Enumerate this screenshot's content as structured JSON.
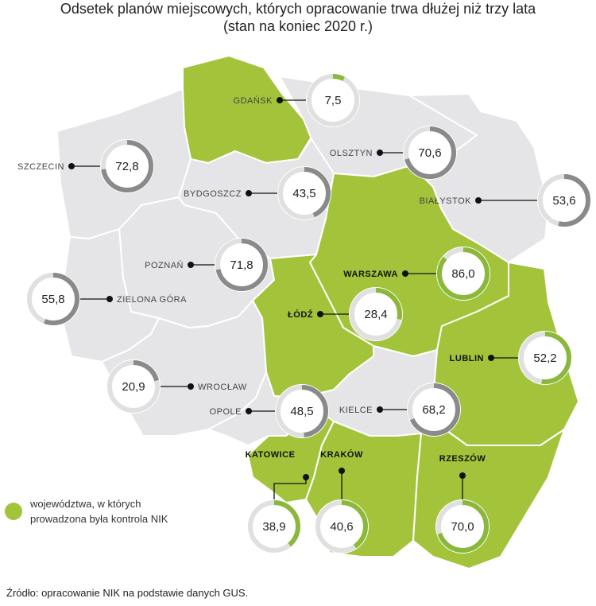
{
  "title": {
    "line1": "Odsetek planów miejscowych, których opracowanie trwa dłużej niż trzy lata",
    "line2": "(stan na koniec 2020 r.)"
  },
  "colors": {
    "controlled": "#a3c43a",
    "other": "#e5e5e7",
    "border": "#ffffff",
    "ring_track": "#e0e0e0",
    "ring_dark": "#8a8a8a",
    "ring_green": "#8bb83a"
  },
  "regions": [
    {
      "city": "GDAŃSK",
      "value": 7.5,
      "display": "7,5",
      "controlled": true
    },
    {
      "city": "OLSZTYN",
      "value": 70.6,
      "display": "70,6",
      "controlled": false
    },
    {
      "city": "SZCZECIN",
      "value": 72.8,
      "display": "72,8",
      "controlled": false
    },
    {
      "city": "BYDGOSZCZ",
      "value": 43.5,
      "display": "43,5",
      "controlled": false
    },
    {
      "city": "BIAŁYSTOK",
      "value": 53.6,
      "display": "53,6",
      "controlled": false
    },
    {
      "city": "POZNAŃ",
      "value": 71.8,
      "display": "71,8",
      "controlled": false
    },
    {
      "city": "WARSZAWA",
      "value": 86.0,
      "display": "86,0",
      "controlled": true
    },
    {
      "city": "ZIELONA GÓRA",
      "value": 55.8,
      "display": "55,8",
      "controlled": false
    },
    {
      "city": "ŁÓDŹ",
      "value": 28.4,
      "display": "28,4",
      "controlled": true
    },
    {
      "city": "LUBLIN",
      "value": 52.2,
      "display": "52,2",
      "controlled": true
    },
    {
      "city": "WROCŁAW",
      "value": 20.9,
      "display": "20,9",
      "controlled": false
    },
    {
      "city": "OPOLE",
      "value": 48.5,
      "display": "48,5",
      "controlled": false
    },
    {
      "city": "KIELCE",
      "value": 68.2,
      "display": "68,2",
      "controlled": false
    },
    {
      "city": "KATOWICE",
      "value": 38.9,
      "display": "38,9",
      "controlled": true
    },
    {
      "city": "KRAKÓW",
      "value": 40.6,
      "display": "40,6",
      "controlled": true
    },
    {
      "city": "RZESZÓW",
      "value": 70.0,
      "display": "70,0",
      "controlled": true
    }
  ],
  "legend": {
    "line1": "województwa, w których",
    "line2": "prowadzona była kontrola NIK"
  },
  "source": "Źródło: opracowanie NIK na podstawie danych GUS."
}
